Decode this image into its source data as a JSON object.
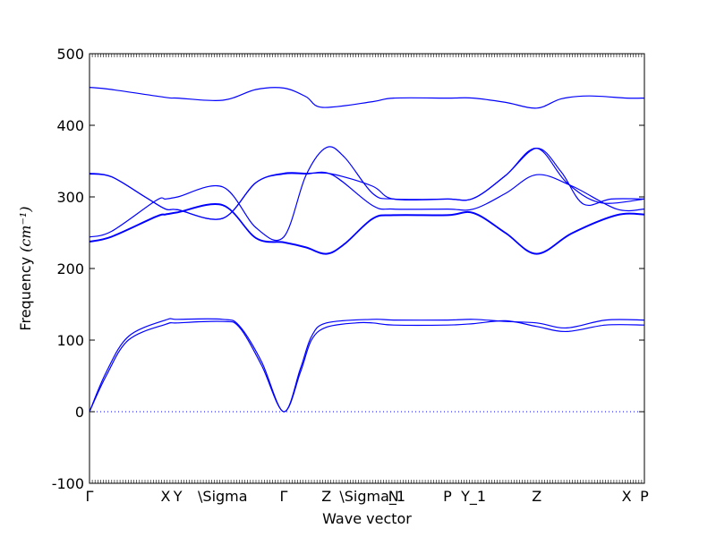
{
  "chart_data": {
    "type": "line",
    "xlabel": "Wave vector",
    "ylabel": "Frequency",
    "ylabel_unit": "(cm⁻¹)",
    "ylim": [
      -100,
      500
    ],
    "yticks": [
      -100,
      0,
      100,
      200,
      300,
      400,
      500
    ],
    "xlim": [
      0,
      1
    ],
    "high_symmetry_points": [
      {
        "label": "Γ",
        "x": 0.0
      },
      {
        "label": "X",
        "x": 0.137
      },
      {
        "label": "Y",
        "x": 0.159
      },
      {
        "label": "\\Sigma",
        "x": 0.24
      },
      {
        "label": "Γ",
        "x": 0.35
      },
      {
        "label": "Z",
        "x": 0.427
      },
      {
        "label": "\\Sigma_1",
        "x": 0.51
      },
      {
        "label": "N",
        "x": 0.548
      },
      {
        "label": "P",
        "x": 0.645
      },
      {
        "label": "Y_1",
        "x": 0.692
      },
      {
        "label": "Z",
        "x": 0.806
      },
      {
        "label": "X",
        "x": 0.968
      },
      {
        "label": "P",
        "x": 1.0
      }
    ],
    "zero_line": {
      "y": 0,
      "style": "dotted"
    },
    "series": [
      {
        "values": [
          [
            0,
            453
          ],
          [
            0.04,
            450
          ],
          [
            0.137,
            439
          ],
          [
            0.159,
            438
          ],
          [
            0.24,
            435
          ],
          [
            0.3,
            450
          ],
          [
            0.35,
            452
          ],
          [
            0.39,
            440
          ],
          [
            0.42,
            425
          ],
          [
            0.51,
            433
          ],
          [
            0.548,
            438
          ],
          [
            0.645,
            438
          ],
          [
            0.692,
            438
          ],
          [
            0.75,
            432
          ],
          [
            0.806,
            424
          ],
          [
            0.85,
            437
          ],
          [
            0.9,
            441
          ],
          [
            0.968,
            438
          ],
          [
            1.0,
            438
          ]
        ]
      },
      {
        "values": [
          [
            0,
            333
          ],
          [
            0.04,
            328
          ],
          [
            0.1,
            300
          ],
          [
            0.137,
            283
          ],
          [
            0.159,
            282
          ],
          [
            0.24,
            270
          ],
          [
            0.3,
            320
          ],
          [
            0.35,
            333
          ],
          [
            0.39,
            333
          ],
          [
            0.437,
            332
          ],
          [
            0.51,
            315
          ],
          [
            0.548,
            297
          ],
          [
            0.645,
            297
          ],
          [
            0.692,
            298
          ],
          [
            0.75,
            330
          ],
          [
            0.806,
            368
          ],
          [
            0.85,
            335
          ],
          [
            0.89,
            290
          ],
          [
            0.94,
            297
          ],
          [
            1.0,
            297
          ]
        ]
      },
      {
        "values": [
          [
            0,
            332
          ],
          [
            0.04,
            328
          ],
          [
            0.1,
            300
          ],
          [
            0.137,
            283
          ],
          [
            0.159,
            282
          ],
          [
            0.24,
            270
          ],
          [
            0.3,
            320
          ],
          [
            0.35,
            332
          ],
          [
            0.39,
            332
          ],
          [
            0.437,
            331
          ],
          [
            0.51,
            288
          ],
          [
            0.548,
            283
          ],
          [
            0.645,
            283
          ],
          [
            0.692,
            283
          ],
          [
            0.75,
            305
          ],
          [
            0.806,
            331
          ],
          [
            0.87,
            315
          ],
          [
            0.95,
            283
          ],
          [
            1.0,
            283
          ]
        ]
      },
      {
        "values": [
          [
            0,
            244
          ],
          [
            0.04,
            252
          ],
          [
            0.12,
            295
          ],
          [
            0.137,
            297
          ],
          [
            0.159,
            300
          ],
          [
            0.24,
            314
          ],
          [
            0.3,
            257
          ],
          [
            0.35,
            244
          ],
          [
            0.39,
            330
          ],
          [
            0.427,
            369
          ],
          [
            0.46,
            355
          ],
          [
            0.51,
            305
          ],
          [
            0.548,
            297
          ],
          [
            0.645,
            297
          ],
          [
            0.692,
            298
          ],
          [
            0.75,
            330
          ],
          [
            0.806,
            368
          ],
          [
            0.86,
            320
          ],
          [
            0.92,
            292
          ],
          [
            1.0,
            297
          ]
        ]
      },
      {
        "values": [
          [
            0,
            238
          ],
          [
            0.04,
            245
          ],
          [
            0.12,
            273
          ],
          [
            0.137,
            276
          ],
          [
            0.159,
            279
          ],
          [
            0.24,
            289
          ],
          [
            0.3,
            243
          ],
          [
            0.35,
            237
          ],
          [
            0.39,
            230
          ],
          [
            0.427,
            221
          ],
          [
            0.46,
            235
          ],
          [
            0.51,
            270
          ],
          [
            0.548,
            275
          ],
          [
            0.645,
            275
          ],
          [
            0.692,
            278
          ],
          [
            0.75,
            250
          ],
          [
            0.806,
            221
          ],
          [
            0.87,
            250
          ],
          [
            0.95,
            275
          ],
          [
            1.0,
            276
          ]
        ]
      },
      {
        "values": [
          [
            0,
            237
          ],
          [
            0.04,
            244
          ],
          [
            0.12,
            272
          ],
          [
            0.137,
            275
          ],
          [
            0.159,
            278
          ],
          [
            0.24,
            288
          ],
          [
            0.3,
            242
          ],
          [
            0.35,
            236
          ],
          [
            0.39,
            229
          ],
          [
            0.427,
            220
          ],
          [
            0.46,
            234
          ],
          [
            0.51,
            269
          ],
          [
            0.548,
            274
          ],
          [
            0.645,
            274
          ],
          [
            0.692,
            277
          ],
          [
            0.75,
            249
          ],
          [
            0.806,
            220
          ],
          [
            0.87,
            249
          ],
          [
            0.95,
            274
          ],
          [
            1.0,
            275
          ]
        ]
      },
      {
        "values": [
          [
            0,
            0
          ],
          [
            0.03,
            55
          ],
          [
            0.07,
            105
          ],
          [
            0.137,
            128
          ],
          [
            0.159,
            129
          ],
          [
            0.24,
            129
          ],
          [
            0.27,
            120
          ],
          [
            0.31,
            70
          ],
          [
            0.35,
            0
          ],
          [
            0.38,
            60
          ],
          [
            0.4,
            105
          ],
          [
            0.427,
            124
          ],
          [
            0.51,
            129
          ],
          [
            0.548,
            128
          ],
          [
            0.645,
            128
          ],
          [
            0.692,
            129
          ],
          [
            0.75,
            126
          ],
          [
            0.806,
            124
          ],
          [
            0.86,
            117
          ],
          [
            0.93,
            128
          ],
          [
            1.0,
            128
          ]
        ]
      },
      {
        "values": [
          [
            0,
            0
          ],
          [
            0.03,
            50
          ],
          [
            0.07,
            100
          ],
          [
            0.137,
            122
          ],
          [
            0.159,
            124
          ],
          [
            0.24,
            126
          ],
          [
            0.27,
            118
          ],
          [
            0.31,
            65
          ],
          [
            0.35,
            0
          ],
          [
            0.38,
            55
          ],
          [
            0.4,
            100
          ],
          [
            0.427,
            118
          ],
          [
            0.48,
            124
          ],
          [
            0.51,
            124
          ],
          [
            0.548,
            121
          ],
          [
            0.645,
            121
          ],
          [
            0.692,
            123
          ],
          [
            0.75,
            127
          ],
          [
            0.806,
            119
          ],
          [
            0.86,
            112
          ],
          [
            0.93,
            121
          ],
          [
            1.0,
            121
          ]
        ]
      }
    ],
    "line_color": "#0000ff",
    "grid": false
  }
}
